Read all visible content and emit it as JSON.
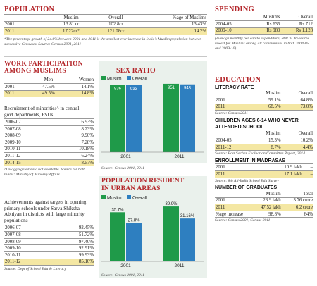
{
  "population": {
    "title": "POPULATION",
    "headers": [
      "",
      "Muslim",
      "Overall",
      "%age of Muslims"
    ],
    "rows": [
      [
        "2001",
        "13.81 cr",
        "102.8cr",
        "13.43%"
      ],
      [
        "2011",
        "17.22cr*",
        "121.08cr",
        "14.2%"
      ]
    ],
    "note": "*The percentage growth of 24.6% between 2001 and 2011 is the smallest ever increase in India's Muslim population between successive Censuses. Source: Census 2001, 2011"
  },
  "work": {
    "title_line1": "WORK PARTICIPATION",
    "title_line2": "AMONG MUSLIMS",
    "headers": [
      "",
      "Men",
      "Women"
    ],
    "rows": [
      [
        "2001",
        "47.5%",
        "14.1%"
      ],
      [
        "2011",
        "49.5%",
        "14.8%"
      ]
    ]
  },
  "recruitment": {
    "title": "Recruitment of minorities^ in central govt departments, PSUs",
    "rows": [
      [
        "2006-07",
        "6.93%"
      ],
      [
        "2007-08",
        "8.23%"
      ],
      [
        "2008-09",
        "9.90%"
      ],
      [
        "2009-10",
        "7.28%"
      ],
      [
        "2010-11",
        "10.18%"
      ],
      [
        "2011-12",
        "6.24%"
      ],
      [
        "2014-15",
        "8.57%"
      ]
    ],
    "note": "^Disaggregated data not available. Source for both tables: Ministry of Minority Affairs"
  },
  "achievements": {
    "title": "Achievements against targets in opening primary schools under Sarva Shiksha Abhiyan in districts with large minority populations",
    "rows": [
      [
        "2006-07",
        "92.45%"
      ],
      [
        "2007-08",
        "51.72%"
      ],
      [
        "2008-09",
        "97.40%"
      ],
      [
        "2009-10",
        "92.91%"
      ],
      [
        "2010-11",
        "99.93%"
      ],
      [
        "2011-12",
        "85.10%"
      ]
    ],
    "note": "Source: Dept of School Edu & Literacy"
  },
  "sex_ratio": {
    "title": "SEX RATIO",
    "legend": [
      "Muslim",
      "Overall"
    ],
    "colors": {
      "muslim": "#1f9a49",
      "overall": "#2e7fc0"
    },
    "source": "Source: Census 2001, 2011"
  },
  "urban": {
    "title_line1": "POPULATION RESIDENT",
    "title_line2": "IN URBAN AREAS",
    "legend": [
      "Muslim",
      "Overall"
    ],
    "source": "Source: Census 2001, 2011"
  },
  "chart_data": [
    {
      "type": "bar",
      "title": "SEX RATIO",
      "categories": [
        "2001",
        "2011"
      ],
      "series": [
        {
          "name": "Muslim",
          "values": [
            936,
            951
          ]
        },
        {
          "name": "Overall",
          "values": [
            933,
            943
          ]
        }
      ],
      "value_labels": {
        "Muslim": [
          "936",
          "951"
        ],
        "Overall": [
          "933",
          "943"
        ]
      }
    },
    {
      "type": "bar",
      "title": "POPULATION RESIDENT IN URBAN AREAS",
      "categories": [
        "2001",
        "2011"
      ],
      "series": [
        {
          "name": "Muslim",
          "values": [
            35.7,
            39.9
          ]
        },
        {
          "name": "Overall",
          "values": [
            27.8,
            31.16
          ]
        }
      ],
      "value_labels": {
        "Muslim": [
          "35.7%",
          "39.9%"
        ],
        "Overall": [
          "27.8%",
          "31.16%"
        ]
      }
    }
  ],
  "spending": {
    "title": "SPENDING",
    "headers": [
      "",
      "Muslims",
      "Overall"
    ],
    "rows": [
      [
        "2004-05",
        "Rs 635",
        "Rs 712"
      ],
      [
        "2009-10",
        "Rs 980",
        "Rs 1,128"
      ]
    ],
    "note": "(Average monthly per capita expenditure, MPCE. It was the lowest for Muslims among all communities in both 2004-05 and 2009-10)"
  },
  "education": {
    "title": "EDUCATION",
    "literacy": {
      "title": "LITERACY RATE",
      "headers": [
        "",
        "Muslim",
        "Overall"
      ],
      "rows": [
        [
          "2001",
          "59.1%",
          "64.8%"
        ],
        [
          "2011",
          "68.5%",
          "73.0%"
        ]
      ],
      "source": "Source: Census 2011"
    },
    "dropout": {
      "title": "CHILDREN AGES 6-14 WHO NEVER ATTENDED SCHOOL",
      "headers": [
        "",
        "Muslim",
        "Overall"
      ],
      "rows": [
        [
          "2004-05",
          "15.3%",
          "10.2%"
        ],
        [
          "2011-12",
          "8.7%",
          "4.4%"
        ]
      ],
      "source": "Source: Post Sachar Evaluation Committee Report, 2014"
    },
    "madrasas": {
      "title": "ENROLLMENT IN MADRASAS",
      "rows": [
        [
          "2001",
          "10.9 lakh",
          "–"
        ],
        [
          "2011",
          "17.1 lakh",
          "–"
        ]
      ],
      "source": "Source: 8th All-India School Edu Survey"
    },
    "graduates": {
      "title": "NUMBER OF GRADUATES",
      "headers": [
        "",
        "Muslim",
        "Total"
      ],
      "rows": [
        [
          "2001",
          "23.9 lakh",
          "3.76 crore"
        ],
        [
          "2011",
          "47.52 lakh",
          "6.2 crore"
        ],
        [
          "%age increase",
          "98.8%",
          "64%"
        ]
      ],
      "source": "Source: Census 2001, Census 2011"
    }
  }
}
